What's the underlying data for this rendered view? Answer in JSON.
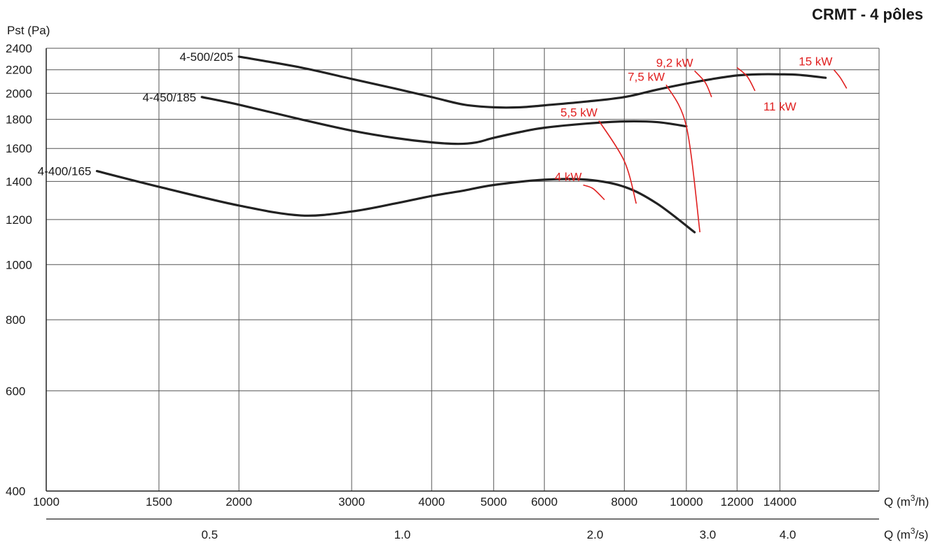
{
  "chart_data": {
    "type": "line",
    "title": "CRMT - 4 pôles",
    "ylabel": "Pst (Pa)",
    "xlabel": "Q (m3/h)",
    "xlabel2": "Q (m3/s)",
    "x_scale": "log",
    "y_scale": "log",
    "xlim": [
      1000,
      20000
    ],
    "ylim": [
      400,
      2400
    ],
    "grid": true,
    "y_ticks": [
      {
        "value": 400,
        "label": "400"
      },
      {
        "value": 600,
        "label": "600"
      },
      {
        "value": 800,
        "label": "800"
      },
      {
        "value": 1000,
        "label": "1000"
      },
      {
        "value": 1200,
        "label": "1200"
      },
      {
        "value": 1400,
        "label": "1400"
      },
      {
        "value": 1600,
        "label": "1600"
      },
      {
        "value": 1800,
        "label": "1800"
      },
      {
        "value": 2000,
        "label": "2000"
      },
      {
        "value": 2200,
        "label": "2200"
      },
      {
        "value": 2400,
        "label": "2400"
      }
    ],
    "x_ticks": [
      {
        "value": 1000,
        "label": "1000"
      },
      {
        "value": 1500,
        "label": "1500"
      },
      {
        "value": 2000,
        "label": "2000"
      },
      {
        "value": 3000,
        "label": "3000"
      },
      {
        "value": 4000,
        "label": "4000"
      },
      {
        "value": 5000,
        "label": "5000"
      },
      {
        "value": 6000,
        "label": "6000"
      },
      {
        "value": 8000,
        "label": "8000"
      },
      {
        "value": 10000,
        "label": "10000"
      },
      {
        "value": 12000,
        "label": "12000"
      },
      {
        "value": 14000,
        "label": "14000"
      }
    ],
    "x_ticks_m3s": [
      {
        "value": 0.5,
        "label": "0.5"
      },
      {
        "value": 1.0,
        "label": "1.0"
      },
      {
        "value": 2.0,
        "label": "2.0"
      },
      {
        "value": 3.0,
        "label": "3.0"
      },
      {
        "value": 4.0,
        "label": "4.0"
      }
    ],
    "series": [
      {
        "name": "4-500/205",
        "x": [
          2000,
          2500,
          3000,
          3500,
          4000,
          4500,
          5000,
          5500,
          6000,
          7000,
          8000,
          9000,
          10000,
          11000,
          12000,
          13000,
          14000,
          15000,
          16500
        ],
        "y": [
          2320,
          2220,
          2120,
          2040,
          1970,
          1910,
          1890,
          1890,
          1905,
          1935,
          1970,
          2030,
          2080,
          2120,
          2150,
          2160,
          2160,
          2155,
          2130
        ]
      },
      {
        "name": "4-450/185",
        "x": [
          1750,
          2000,
          2500,
          3000,
          3500,
          4000,
          4400,
          4700,
          5000,
          5500,
          6000,
          7000,
          8000,
          9000,
          10000
        ],
        "y": [
          1970,
          1910,
          1800,
          1720,
          1670,
          1640,
          1630,
          1640,
          1670,
          1710,
          1740,
          1770,
          1785,
          1780,
          1750
        ]
      },
      {
        "name": "4-400/165",
        "x": [
          1200,
          1500,
          2000,
          2500,
          3000,
          3500,
          4000,
          4500,
          5000,
          6000,
          7000,
          8000,
          9000,
          10300
        ],
        "y": [
          1460,
          1370,
          1270,
          1220,
          1240,
          1280,
          1320,
          1350,
          1380,
          1410,
          1410,
          1370,
          1280,
          1140
        ]
      }
    ],
    "power_lines": [
      {
        "label": "4 kW",
        "x": [
          6900,
          7150,
          7450
        ],
        "y": [
          1380,
          1360,
          1300
        ]
      },
      {
        "label": "5,5 kW",
        "x": [
          7300,
          8000,
          8350
        ],
        "y": [
          1790,
          1520,
          1280
        ]
      },
      {
        "label": "7,5 kW",
        "x": [
          9300,
          10000,
          10500
        ],
        "y": [
          2070,
          1750,
          1140
        ]
      },
      {
        "label": "9,2 kW",
        "x": [
          10300,
          10700,
          10950
        ],
        "y": [
          2190,
          2090,
          1970
        ]
      },
      {
        "label": "11 kW",
        "x": [
          12000,
          12450,
          12800
        ],
        "y": [
          2220,
          2140,
          2020
        ]
      },
      {
        "label": "15 kW",
        "x": [
          17000,
          17400,
          17800
        ],
        "y": [
          2200,
          2130,
          2040
        ]
      }
    ]
  }
}
